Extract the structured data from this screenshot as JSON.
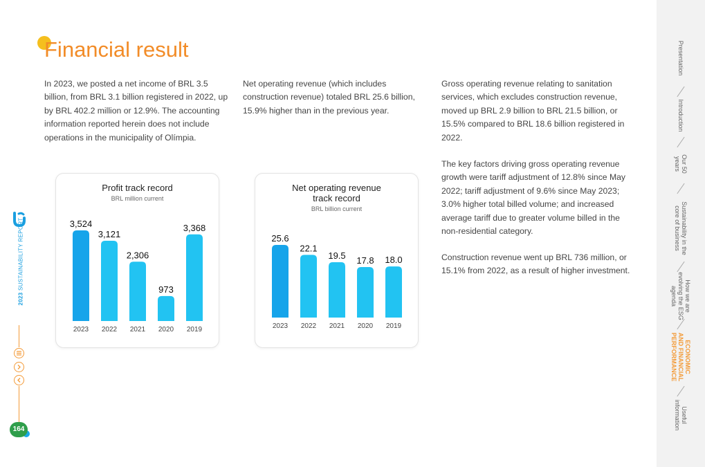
{
  "header": {
    "title": "Financial result"
  },
  "paragraphs": {
    "col1": "In 2023, we posted a net income of BRL 3.5 billion, from BRL 3.1 billion registered in 2022, up by BRL 402.2 million or 12.9%. The accounting information reported herein does not include operations in the municipality of Olímpia.",
    "col2": "Net operating revenue (which includes construction revenue) totaled BRL 25.6 billion, 15.9% higher than in the previous year.",
    "col3a": "Gross operating revenue relating to sanitation services, which excludes construction revenue, moved up BRL 2.9 billion to BRL 21.5 billion, or 15.5% compared to BRL 18.6 billion registered in 2022.",
    "col3b": "The key factors driving gross operating revenue growth were tariff adjustment of 12.8% since May 2022; tariff adjustment of 9.6% since May 2023; 3.0% higher total billed volume; and increased average tariff due to greater volume billed in the non-residential category.",
    "col3c": "Construction revenue went up BRL 736 million, or 15.1% from 2022, as a result of higher investment."
  },
  "chart_data": [
    {
      "type": "bar",
      "title": "Profit track record",
      "subtitle": "BRL million current",
      "categories": [
        "2023",
        "2022",
        "2021",
        "2020",
        "2019"
      ],
      "values": [
        3524,
        3121,
        2306,
        973,
        3368
      ],
      "value_labels": [
        "3,524",
        "3,121",
        "2,306",
        "973",
        "3,368"
      ],
      "colors": [
        "#16a4ea",
        "#22c3f2",
        "#22c3f2",
        "#22c3f2",
        "#22c3f2"
      ]
    },
    {
      "type": "bar",
      "title": "Net operating revenue track record",
      "subtitle": "BRL billion current",
      "categories": [
        "2023",
        "2022",
        "2021",
        "2020",
        "2019"
      ],
      "values": [
        25.6,
        22.1,
        19.5,
        17.8,
        18.0
      ],
      "value_labels": [
        "25.6",
        "22.1",
        "19.5",
        "17.8",
        "18.0"
      ],
      "colors": [
        "#16a4ea",
        "#22c3f2",
        "#22c3f2",
        "#22c3f2",
        "#22c3f2"
      ]
    }
  ],
  "sidebar": {
    "items": [
      {
        "label": "Presentation",
        "active": false
      },
      {
        "label": "Introduction",
        "active": false
      },
      {
        "label": "Our 50\nyears",
        "active": false
      },
      {
        "label": "Sustainability in the\ncore of business",
        "active": false
      },
      {
        "label": "How we are\nevolving the ESG\nagenda",
        "active": false
      },
      {
        "label": "ECONOMIC\nAND FINANCIAL\nPERFORMANCE",
        "active": true
      },
      {
        "label": "Useful\ninformation",
        "active": false
      }
    ]
  },
  "left_rail": {
    "report_year": "2023",
    "report_name": "SUSTAINABILITY REPORT",
    "menu_icon": "menu-icon",
    "next_icon": "chevron-right-icon",
    "prev_icon": "chevron-left-icon",
    "page_number": "164",
    "accent_color": "#f39a37"
  }
}
